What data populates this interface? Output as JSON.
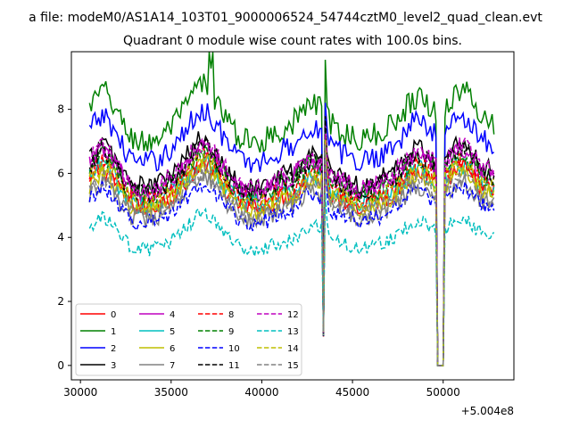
{
  "figure": {
    "suptitle": "a file: modeM0/AS1A14_103T01_9000006524_54744cztM0_level2_quad_clean.evt",
    "title": "Quadrant 0 module wise count rates with 100.0s bins.",
    "offset_text": "+5.004e8"
  },
  "chart_data": {
    "type": "line",
    "title": "Quadrant 0 module wise count rates with 100.0s bins.",
    "xlabel": "",
    "ylabel": "",
    "x_offset": 500400000,
    "xlim": [
      29500,
      53900
    ],
    "ylim": [
      -0.45,
      9.8
    ],
    "x_ticks": [
      30000,
      35000,
      40000,
      45000,
      50000
    ],
    "x_tick_labels": [
      "30000",
      "35000",
      "40000",
      "45000",
      "50000"
    ],
    "y_ticks": [
      0,
      2,
      4,
      6,
      8
    ],
    "y_tick_labels": [
      "0",
      "2",
      "4",
      "6",
      "8"
    ],
    "x_start": 30500,
    "x_end": 52800,
    "bin_seconds": 100,
    "dip1": {
      "x": [
        43300,
        43550,
        43650
      ],
      "value_at_bottom": 1.0,
      "peak_time": 43580
    },
    "dip2": {
      "x": [
        49650,
        49800,
        50050
      ],
      "value_at_bottom": 0.0
    },
    "legend": {
      "location": "lower-left",
      "columns": 4
    },
    "series": [
      {
        "name": "0",
        "color": "#ff0000",
        "dash": "solid",
        "mean": 5.4,
        "slope": 0.0
      },
      {
        "name": "1",
        "color": "#008000",
        "dash": "solid",
        "mean": 7.6,
        "slope": 0.0
      },
      {
        "name": "2",
        "color": "#0000ff",
        "dash": "solid",
        "mean": 6.9,
        "slope": 0.0
      },
      {
        "name": "3",
        "color": "#000000",
        "dash": "solid",
        "mean": 6.1,
        "slope": 0.0
      },
      {
        "name": "4",
        "color": "#bf00bf",
        "dash": "solid",
        "mean": 5.9,
        "slope": 0.0
      },
      {
        "name": "5",
        "color": "#00bfbf",
        "dash": "solid",
        "mean": 5.5,
        "slope": 0.0
      },
      {
        "name": "6",
        "color": "#bfbf00",
        "dash": "solid",
        "mean": 5.3,
        "slope": 0.0
      },
      {
        "name": "7",
        "color": "#808080",
        "dash": "solid",
        "mean": 5.0,
        "slope": 0.0
      },
      {
        "name": "8",
        "color": "#ff0000",
        "dash": "dashed",
        "mean": 5.6,
        "slope": 0.0
      },
      {
        "name": "9",
        "color": "#008000",
        "dash": "dashed",
        "mean": 5.8,
        "slope": 0.0
      },
      {
        "name": "10",
        "color": "#0000ff",
        "dash": "dashed",
        "mean": 4.9,
        "slope": 0.0
      },
      {
        "name": "11",
        "color": "#000000",
        "dash": "dashed",
        "mean": 5.9,
        "slope": 0.0
      },
      {
        "name": "12",
        "color": "#bf00bf",
        "dash": "dashed",
        "mean": 6.0,
        "slope": 0.0
      },
      {
        "name": "13",
        "color": "#00bfbf",
        "dash": "dashed",
        "mean": 4.0,
        "slope": 0.0
      },
      {
        "name": "14",
        "color": "#bfbf00",
        "dash": "dashed",
        "mean": 5.5,
        "slope": 0.0
      },
      {
        "name": "15",
        "color": "#808080",
        "dash": "dashed",
        "mean": 5.2,
        "slope": 0.0
      }
    ]
  }
}
